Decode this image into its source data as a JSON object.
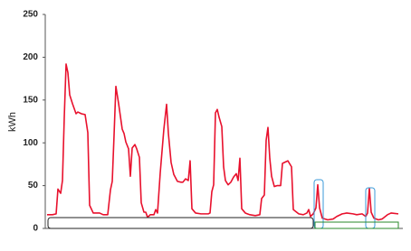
{
  "chart_data": {
    "type": "line",
    "y_label": "kWh",
    "x": [
      0,
      6,
      10,
      12,
      15,
      17,
      19,
      21,
      23,
      25,
      28,
      32,
      34,
      38,
      42,
      45,
      47,
      51,
      58,
      62,
      67,
      70,
      72,
      74,
      76,
      79,
      83,
      85,
      87,
      90,
      92,
      94,
      97,
      99,
      102,
      104,
      107,
      109,
      111,
      114,
      118,
      120,
      122,
      125,
      129,
      132,
      134,
      137,
      140,
      144,
      148,
      150,
      153,
      156,
      158,
      160,
      164,
      170,
      178,
      180,
      182,
      184,
      186,
      188,
      190,
      193,
      195,
      197,
      200,
      203,
      206,
      209,
      211,
      213,
      215,
      219,
      224,
      230,
      235,
      237,
      240,
      242,
      244,
      246,
      248,
      251,
      254,
      258,
      260,
      262,
      266,
      270,
      272,
      278,
      283,
      287,
      289,
      291,
      294,
      297,
      299,
      301,
      304,
      310,
      316,
      320,
      326,
      331,
      338,
      342,
      348,
      352,
      354,
      356,
      358,
      361,
      366,
      370,
      376,
      380,
      388
    ],
    "values": [
      16,
      16,
      17,
      46,
      41,
      56,
      130,
      192,
      182,
      156,
      146,
      134,
      136,
      134,
      133,
      112,
      27,
      18,
      18,
      16,
      16,
      45,
      55,
      109,
      166,
      146,
      116,
      111,
      101,
      93,
      61,
      94,
      98,
      93,
      83,
      30,
      19,
      19,
      13,
      16,
      16,
      22,
      18,
      65,
      116,
      145,
      111,
      77,
      63,
      55,
      54,
      54,
      58,
      56,
      79,
      23,
      18,
      17,
      17,
      18,
      43,
      51,
      135,
      139,
      130,
      119,
      72,
      56,
      51,
      54,
      60,
      64,
      56,
      82,
      23,
      18,
      16,
      15,
      16,
      35,
      39,
      103,
      118,
      82,
      61,
      49,
      50,
      50,
      76,
      77,
      79,
      72,
      22,
      17,
      16,
      18,
      22,
      14,
      17,
      24,
      51,
      24,
      12,
      10,
      11,
      14,
      17,
      18,
      17,
      16,
      17,
      14,
      18,
      47,
      19,
      12,
      10,
      11,
      16,
      18,
      17
    ],
    "color": "#e8112d",
    "xlim": [
      0,
      390
    ],
    "ylim": [
      0,
      250
    ],
    "yticks": [
      0,
      50,
      100,
      150,
      200,
      250
    ],
    "grid": false
  }
}
